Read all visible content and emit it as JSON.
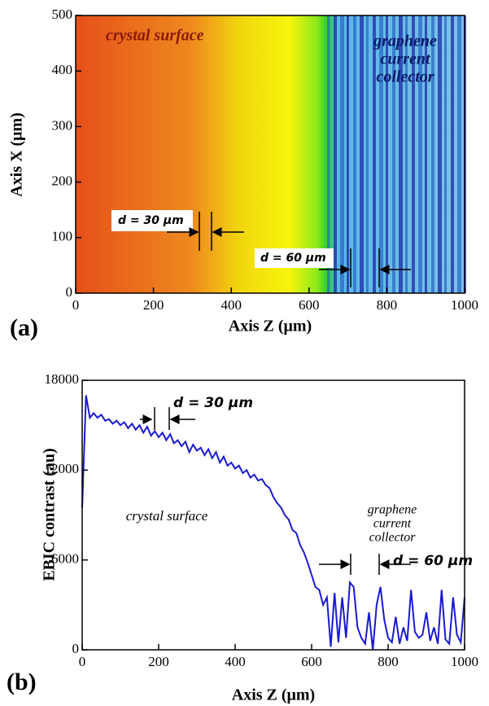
{
  "chart_data": [
    {
      "type": "heatmap",
      "panel": "(a)",
      "xlabel": "Axis Z (μm)",
      "ylabel": "Axis X (μm)",
      "xlim": [
        0,
        1000
      ],
      "ylim": [
        0,
        500
      ],
      "xticks": [
        0,
        200,
        400,
        600,
        800,
        1000
      ],
      "yticks": [
        0,
        100,
        200,
        300,
        400,
        500
      ],
      "annotations": [
        "crystal surface",
        "graphene",
        "current",
        "collector",
        "d = 30 μm",
        "d = 60 μm"
      ]
    },
    {
      "type": "line",
      "panel": "(b)",
      "xlabel": "Axis Z (μm)",
      "ylabel": "EBIC contrast (au)",
      "xlim": [
        0,
        1000
      ],
      "ylim": [
        0,
        18000
      ],
      "xticks": [
        0,
        200,
        400,
        600,
        800,
        1000
      ],
      "yticks": [
        0,
        6000,
        12000,
        18000
      ],
      "annotations": [
        "crystal surface",
        "graphene",
        "current",
        "collector",
        "d = 30 μm",
        "d = 60 μm"
      ],
      "x": [
        0,
        10,
        20,
        30,
        40,
        50,
        60,
        70,
        80,
        90,
        100,
        110,
        120,
        130,
        140,
        150,
        160,
        170,
        180,
        190,
        200,
        210,
        220,
        230,
        240,
        250,
        260,
        270,
        280,
        290,
        300,
        310,
        320,
        330,
        340,
        350,
        360,
        370,
        380,
        390,
        400,
        410,
        420,
        430,
        440,
        450,
        460,
        470,
        480,
        490,
        500,
        510,
        520,
        530,
        540,
        550,
        560,
        570,
        580,
        590,
        600,
        610,
        620,
        630,
        640,
        650,
        660,
        670,
        680,
        690,
        700,
        710,
        720,
        730,
        740,
        750,
        760,
        770,
        780,
        790,
        800,
        810,
        820,
        830,
        840,
        850,
        860,
        870,
        880,
        890,
        900,
        910,
        920,
        930,
        940,
        950,
        960,
        970,
        980,
        990,
        1000
      ],
      "series": [
        {
          "color": "#1a1ad0",
          "values": [
            9500,
            17000,
            15500,
            15800,
            15500,
            15700,
            15300,
            15400,
            15100,
            15300,
            15000,
            15200,
            14800,
            15100,
            14700,
            15000,
            14500,
            14900,
            14300,
            14600,
            14200,
            14500,
            14000,
            14400,
            13800,
            14000,
            13600,
            13900,
            13200,
            13700,
            13300,
            13500,
            13000,
            13400,
            12800,
            13200,
            12500,
            12900,
            12300,
            12500,
            12100,
            12300,
            11800,
            12000,
            11500,
            11700,
            11300,
            11400,
            11000,
            10800,
            10200,
            9800,
            9500,
            9000,
            8700,
            8000,
            7800,
            7000,
            6500,
            5800,
            5000,
            4200,
            4000,
            3000,
            3500,
            200,
            3800,
            500,
            3500,
            800,
            4500,
            4200,
            1500,
            800,
            400,
            2500,
            0,
            3000,
            4200,
            2000,
            800,
            500,
            2200,
            400,
            1500,
            600,
            4000,
            1200,
            800,
            1000,
            2500,
            600,
            1500,
            400,
            4000,
            700,
            400,
            3500,
            1000,
            500,
            3500
          ]
        }
      ]
    }
  ]
}
